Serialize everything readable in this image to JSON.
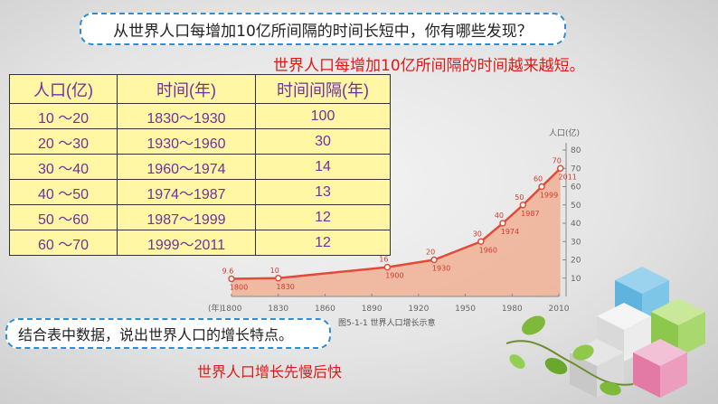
{
  "question": "从世界人口每增加10亿所间隔的时间长短中，你有哪些发现？",
  "answer_1": "世界人口每增加10亿所间隔的时间越来越短。",
  "table": {
    "headers": [
      "人口(亿)",
      "时间(年)",
      "时间间隔(年)"
    ],
    "rows": [
      [
        "10 〜20",
        "1830〜1930",
        "100"
      ],
      [
        "20 〜30",
        "1930〜1960",
        "30"
      ],
      [
        "30 〜40",
        "1960〜1974",
        "14"
      ],
      [
        "40 〜50",
        "1974〜1987",
        "13"
      ],
      [
        "50 〜60",
        "1987〜1999",
        "12"
      ],
      [
        "60 〜70",
        "1999〜2011",
        "12"
      ]
    ]
  },
  "chart_data": {
    "type": "area",
    "title": "",
    "caption": "图5-1-1  世界人口增长示意",
    "xlabel": "(年)",
    "ylabel": "人口(亿)",
    "xlim": [
      1800,
      2010
    ],
    "ylim": [
      0,
      80
    ],
    "x_ticks": [
      1800,
      1830,
      1860,
      1890,
      1920,
      1950,
      1980,
      2010
    ],
    "y_ticks": [
      10,
      20,
      30,
      40,
      50,
      60,
      70,
      80
    ],
    "points": [
      {
        "year": 1800,
        "pop": 9.6,
        "label_top": "9.6",
        "label_bottom": "1800"
      },
      {
        "year": 1830,
        "pop": 10,
        "label_top": "10",
        "label_bottom": "1830"
      },
      {
        "year": 1900,
        "pop": 16,
        "label_top": "16",
        "label_bottom": "1900"
      },
      {
        "year": 1930,
        "pop": 20,
        "label_top": "20",
        "label_bottom": "1930"
      },
      {
        "year": 1960,
        "pop": 30,
        "label_top": "30",
        "label_bottom": "1960"
      },
      {
        "year": 1974,
        "pop": 40,
        "label_top": "40",
        "label_bottom": "1974"
      },
      {
        "year": 1987,
        "pop": 50,
        "label_top": "50",
        "label_bottom": "1987"
      },
      {
        "year": 1999,
        "pop": 60,
        "label_top": "60",
        "label_bottom": "1999"
      },
      {
        "year": 2011,
        "pop": 70,
        "label_top": "70",
        "label_bottom": "2011"
      }
    ],
    "line_color": "#e04b3a",
    "fill_color": "#f2a98a"
  },
  "task": "结合表中数据，说出世界人口的增长特点。",
  "answer_2": "世界人口增长先慢后快"
}
